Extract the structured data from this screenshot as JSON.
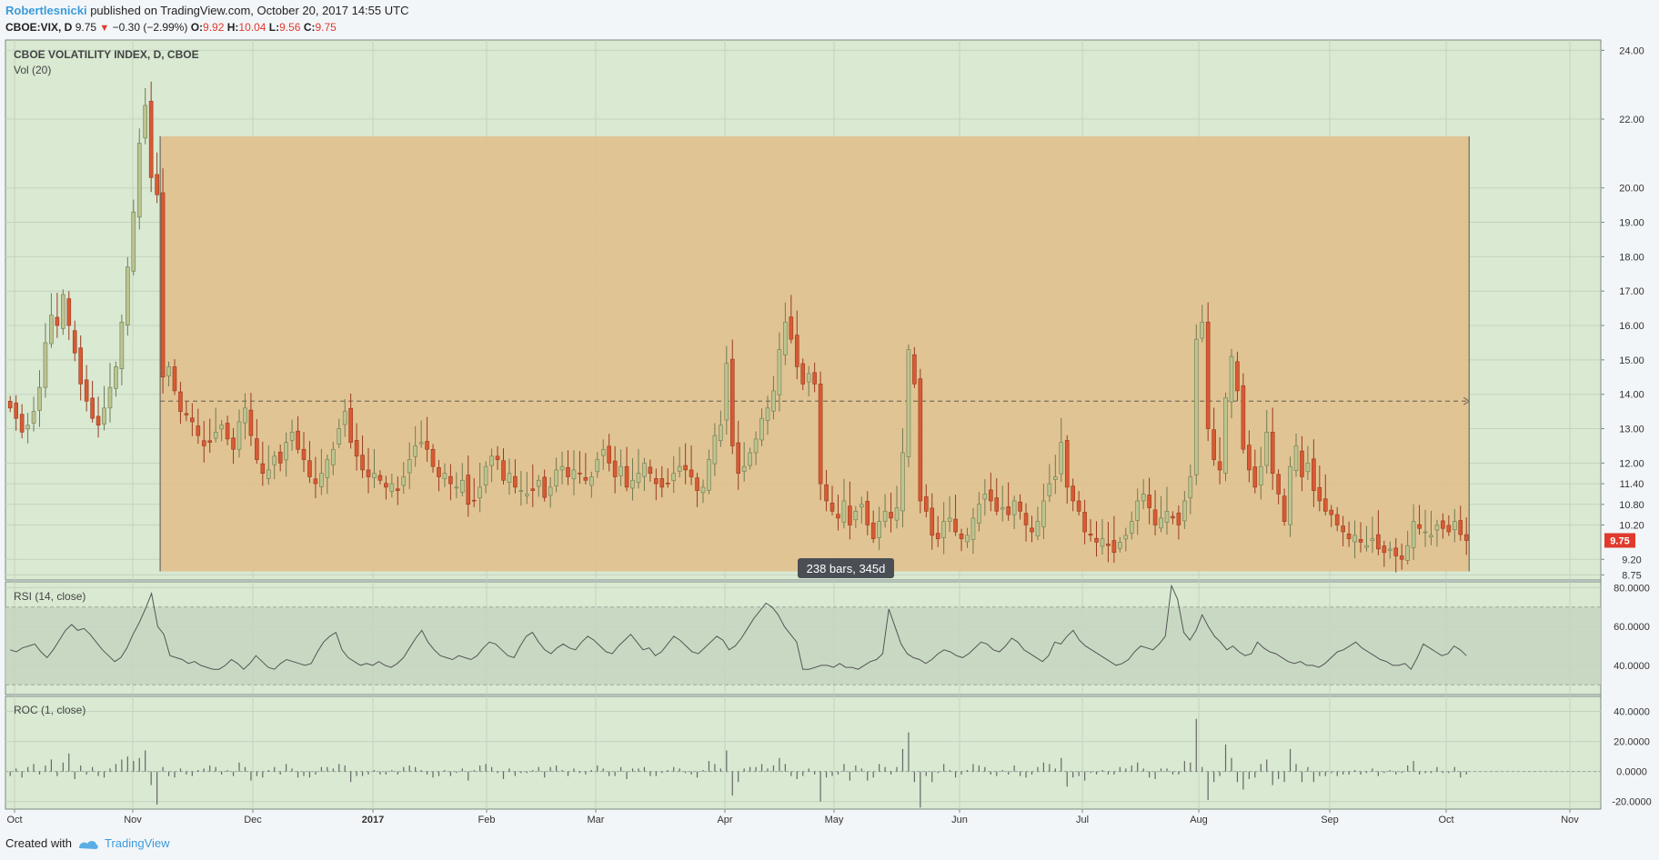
{
  "header": {
    "author": "Robertlesnicki",
    "published": " published on TradingView.com, October 20, 2017 14:55 UTC",
    "symbol": "CBOE:VIX, D",
    "last": "9.75",
    "change": "−0.30 (−2.99%)",
    "o_label": "O:",
    "o": "9.92",
    "h_label": "H:",
    "h": "10.04",
    "l_label": "L:",
    "l": "9.56",
    "c_label": "C:",
    "c": "9.75"
  },
  "footer": {
    "created": "Created with",
    "brand": "TradingView"
  },
  "colors": {
    "background": "#d9e9d2",
    "range_box": "#e2c08d",
    "up_candle": "#bcc48f",
    "down_candle": "#d85a33",
    "price_label": "#e03a2e",
    "rsi_band": "#c6d5c1"
  },
  "chart_data": [
    {
      "type": "candlestick",
      "title": "CBOE VOLATILITY INDEX, D, CBOE",
      "subtitle": "Vol (20)",
      "ylim": [
        8.6,
        24.3
      ],
      "y_ticks": [
        "24.00",
        "22.00",
        "20.00",
        "19.00",
        "18.00",
        "17.00",
        "16.00",
        "15.00",
        "14.00",
        "13.00",
        "12.00",
        "11.40",
        "10.80",
        "10.20",
        "9.75",
        "9.20",
        "8.75"
      ],
      "last_price": "9.75",
      "x_ticks": [
        "Oct",
        "Nov",
        "Dec",
        "2017",
        "Feb",
        "Mar",
        "Apr",
        "May",
        "Jun",
        "Jul",
        "Aug",
        "Sep",
        "Oct",
        "Nov"
      ],
      "range_box": {
        "label": "238 bars, 345d",
        "high": 21.5,
        "low": 8.85,
        "mid": 13.8
      },
      "close_series_approx": [
        13.6,
        13.3,
        12.9,
        13.1,
        13.5,
        14.2,
        15.5,
        16.3,
        16.0,
        16.9,
        16.0,
        15.2,
        14.3,
        13.8,
        13.3,
        13.1,
        13.6,
        14.2,
        14.8,
        16.1,
        17.7,
        19.3,
        21.3,
        22.4,
        20.3,
        19.8,
        14.5,
        14.8,
        14.1,
        13.5,
        13.4,
        13.2,
        12.8,
        12.5,
        12.6,
        12.9,
        13.1,
        12.7,
        12.4,
        13.2,
        13.6,
        12.8,
        12.1,
        11.7,
        11.8,
        12.2,
        12.0,
        12.6,
        12.9,
        12.4,
        12.1,
        11.6,
        11.4,
        11.7,
        12.1,
        12.4,
        13.0,
        13.5,
        12.6,
        12.2,
        11.8,
        11.6,
        11.7,
        11.5,
        11.3,
        11.4,
        11.2,
        11.6,
        12.1,
        12.5,
        12.6,
        12.4,
        11.9,
        11.6,
        11.7,
        11.4,
        11.3,
        11.5,
        10.8,
        10.9,
        11.3,
        11.9,
        12.2,
        12.1,
        11.5,
        11.7,
        11.3,
        11.2,
        11.1,
        11.2,
        11.5,
        11.0,
        11.3,
        11.8,
        11.9,
        11.6,
        11.8,
        11.7,
        11.5,
        11.6,
        12.1,
        12.4,
        12.0,
        11.6,
        11.9,
        11.3,
        11.5,
        11.7,
        12.0,
        11.7,
        11.4,
        11.3,
        11.4,
        11.7,
        11.9,
        11.8,
        11.6,
        11.2,
        11.3,
        12.1,
        12.8,
        13.1,
        14.9,
        12.5,
        11.7,
        11.9,
        12.3,
        12.7,
        13.3,
        13.6,
        14.1,
        15.3,
        16.1,
        15.6,
        14.8,
        14.3,
        14.6,
        14.3,
        11.4,
        10.9,
        10.6,
        10.4,
        10.9,
        10.2,
        10.6,
        10.8,
        10.2,
        9.8,
        10.3,
        10.6,
        10.4,
        10.7,
        12.3,
        15.3,
        14.3,
        10.9,
        10.6,
        9.9,
        9.8,
        10.3,
        10.4,
        10.0,
        9.8,
        9.9,
        10.4,
        10.8,
        11.1,
        10.9,
        10.6,
        10.7,
        10.5,
        10.9,
        10.6,
        10.2,
        10.0,
        10.3,
        10.9,
        11.4,
        11.6,
        12.6,
        11.3,
        10.9,
        10.6,
        10.0,
        9.9,
        9.7,
        9.8,
        9.6,
        9.4,
        9.7,
        9.9,
        10.3,
        10.9,
        11.1,
        10.7,
        10.2,
        10.4,
        10.6,
        10.4,
        10.2,
        10.9,
        11.6,
        15.6,
        16.1,
        13.0,
        12.1,
        11.8,
        13.9,
        15.1,
        14.1,
        12.4,
        11.8,
        11.3,
        11.9,
        12.9,
        11.7,
        11.1,
        10.3,
        11.9,
        12.5,
        11.6,
        12.0,
        11.2,
        10.9,
        10.6,
        10.5,
        10.2,
        10.0,
        9.8,
        9.9,
        9.7,
        9.6,
        9.8,
        9.5,
        9.4,
        9.5,
        9.3,
        9.2,
        9.6,
        10.3,
        10.1,
        10.0,
        9.9,
        10.2,
        10.1,
        10.0,
        10.3,
        9.92,
        9.75
      ]
    },
    {
      "type": "line",
      "title": "RSI (14, close)",
      "ylim": [
        25,
        83
      ],
      "y_ticks": [
        "80.0000",
        "60.0000",
        "40.0000"
      ],
      "band": [
        30,
        70
      ],
      "values_approx": [
        48,
        47,
        49,
        50,
        51,
        47,
        44,
        48,
        53,
        58,
        61,
        58,
        59,
        56,
        52,
        48,
        45,
        42,
        44,
        49,
        56,
        62,
        69,
        77,
        60,
        56,
        45,
        44,
        43,
        41,
        42,
        40,
        39,
        38,
        38,
        40,
        43,
        41,
        38,
        41,
        45,
        42,
        39,
        38,
        41,
        43,
        42,
        41,
        40,
        41,
        47,
        52,
        55,
        57,
        48,
        44,
        42,
        40,
        41,
        40,
        42,
        40,
        39,
        41,
        44,
        49,
        54,
        58,
        52,
        48,
        45,
        44,
        43,
        45,
        44,
        43,
        45,
        49,
        52,
        51,
        48,
        45,
        44,
        50,
        55,
        57,
        52,
        48,
        46,
        49,
        51,
        49,
        48,
        52,
        55,
        53,
        50,
        47,
        46,
        50,
        53,
        56,
        52,
        48,
        49,
        45,
        47,
        51,
        55,
        53,
        50,
        47,
        46,
        49,
        52,
        55,
        53,
        48,
        50,
        54,
        59,
        64,
        68,
        72,
        70,
        66,
        60,
        56,
        52,
        38,
        38,
        39,
        40,
        40,
        39,
        41,
        39,
        39,
        38,
        40,
        42,
        43,
        46,
        69,
        60,
        51,
        46,
        44,
        43,
        41,
        43,
        46,
        48,
        47,
        45,
        44,
        46,
        49,
        52,
        51,
        48,
        47,
        50,
        54,
        52,
        48,
        46,
        44,
        42,
        45,
        52,
        51,
        55,
        58,
        53,
        50,
        48,
        46,
        44,
        42,
        40,
        41,
        43,
        47,
        50,
        49,
        48,
        51,
        55,
        81,
        74,
        57,
        53,
        58,
        66,
        60,
        55,
        52,
        48,
        50,
        47,
        45,
        46,
        52,
        49,
        47,
        46,
        44,
        42,
        41,
        42,
        40,
        40,
        39,
        41,
        44,
        47,
        48,
        50,
        52,
        49,
        47,
        45,
        43,
        42,
        40,
        40,
        41,
        38,
        44,
        51,
        49,
        47,
        45,
        46,
        50,
        48,
        45
      ]
    },
    {
      "type": "bar",
      "title": "ROC (1, close)",
      "ylim": [
        -25,
        50
      ],
      "y_ticks": [
        "40.0000",
        "20.0000",
        "0.0000",
        "-20.0000"
      ],
      "values_approx": [
        -3,
        2,
        -4,
        3,
        5,
        -2,
        4,
        8,
        -3,
        6,
        12,
        -5,
        4,
        -2,
        3,
        -3,
        -4,
        2,
        5,
        8,
        10,
        7,
        9,
        14,
        -9,
        -22,
        3,
        -3,
        -4,
        2,
        -2,
        -3,
        1,
        2,
        4,
        3,
        -2,
        1,
        -3,
        6,
        3,
        -6,
        -3,
        -4,
        1,
        3,
        -2,
        5,
        2,
        -4,
        -3,
        -4,
        -2,
        3,
        3,
        2,
        5,
        4,
        -7,
        -3,
        -3,
        -2,
        1,
        -2,
        -2,
        1,
        -2,
        3,
        4,
        3,
        1,
        -2,
        -4,
        -3,
        1,
        -3,
        -1,
        2,
        -6,
        1,
        4,
        5,
        3,
        -1,
        -5,
        2,
        -3,
        -1,
        -1,
        1,
        3,
        -4,
        3,
        4,
        1,
        -3,
        2,
        -1,
        -2,
        1,
        4,
        2,
        -3,
        -3,
        3,
        -5,
        2,
        2,
        3,
        -3,
        -3,
        -1,
        1,
        3,
        2,
        -1,
        -2,
        -4,
        1,
        7,
        5,
        2,
        14,
        -16,
        -7,
        2,
        3,
        3,
        5,
        2,
        4,
        9,
        5,
        -3,
        -5,
        -3,
        2,
        -2,
        -20,
        -4,
        -3,
        -2,
        5,
        -6,
        4,
        2,
        -6,
        -4,
        5,
        3,
        -2,
        3,
        15,
        26,
        -7,
        -24,
        -3,
        -7,
        -1,
        5,
        1,
        -4,
        -2,
        1,
        5,
        4,
        3,
        -2,
        -3,
        1,
        -2,
        4,
        -3,
        -4,
        -2,
        3,
        6,
        5,
        2,
        9,
        -10,
        -4,
        -3,
        -6,
        -1,
        -2,
        1,
        -2,
        -2,
        3,
        2,
        4,
        6,
        2,
        -4,
        -5,
        2,
        2,
        -2,
        -2,
        7,
        6,
        35,
        3,
        -19,
        -7,
        -3,
        18,
        9,
        -7,
        -12,
        -5,
        -4,
        5,
        8,
        -9,
        -5,
        -7,
        15,
        5,
        -7,
        3,
        -7,
        -3,
        -3,
        -1,
        -3,
        -2,
        -2,
        1,
        -2,
        -1,
        2,
        -3,
        -1,
        1,
        -2,
        -1,
        4,
        7,
        -2,
        -1,
        -1,
        3,
        -1,
        -1,
        3,
        -4,
        -2
      ]
    }
  ]
}
